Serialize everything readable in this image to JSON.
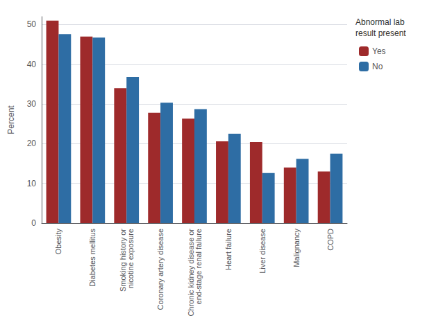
{
  "chart_data": {
    "type": "bar",
    "categories": [
      "Obesity",
      "Diabetes mellitus",
      "Smoking history or\nnicotine exposure",
      "Coronary artery disease",
      "Chronic kidney disease or\nend-stage renal failure",
      "Heart failure",
      "Liver disease",
      "Malignancy",
      "COPD"
    ],
    "series": [
      {
        "name": "Yes",
        "color": "#9e2a2b",
        "values": [
          51.0,
          47.0,
          34.0,
          27.8,
          26.3,
          20.6,
          20.4,
          14.0,
          13.0
        ]
      },
      {
        "name": "No",
        "color": "#2e6da4",
        "values": [
          47.6,
          46.7,
          36.8,
          30.3,
          28.7,
          22.5,
          12.6,
          16.2,
          17.5
        ]
      }
    ],
    "ylabel": "Percent",
    "legend_title": "Abnormal lab\nresult present",
    "ylim": [
      0,
      52
    ],
    "yticks": [
      0,
      10,
      20,
      30,
      40,
      50
    ],
    "grid": true,
    "legend": "upper right"
  }
}
